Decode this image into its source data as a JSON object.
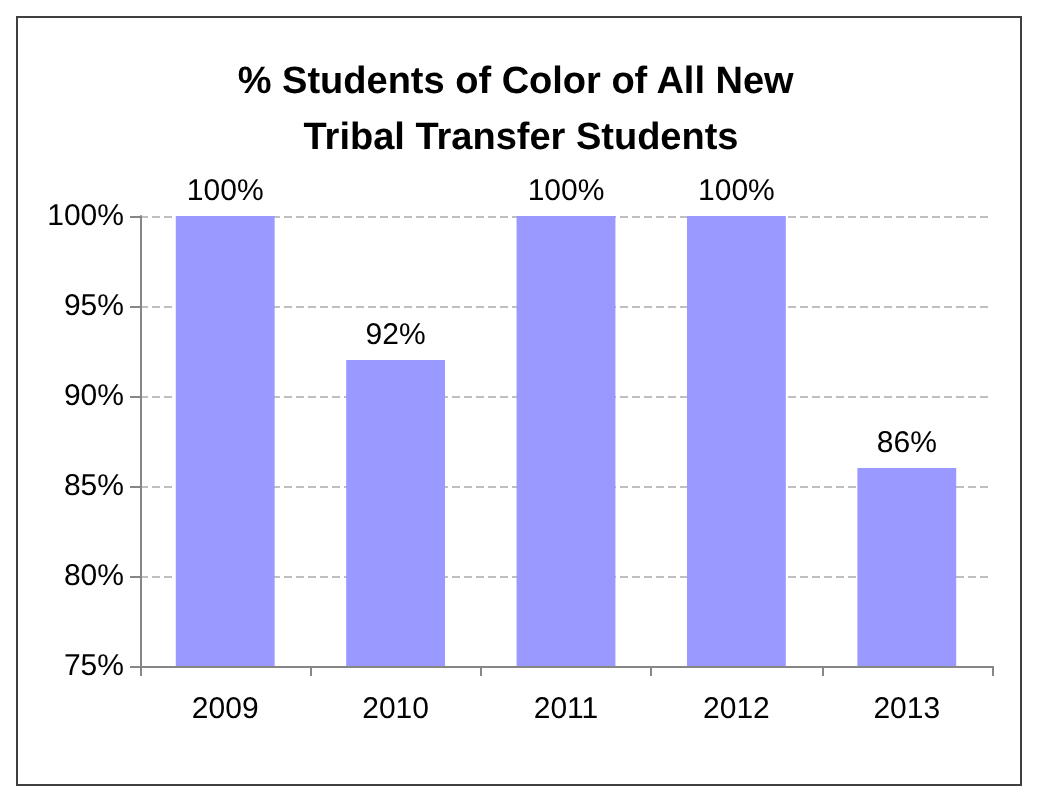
{
  "chart_data": {
    "type": "bar",
    "title": "% Students of Color of All New Tribal Transfer Students",
    "categories": [
      "2009",
      "2010",
      "2011",
      "2012",
      "2013"
    ],
    "values": [
      100,
      92,
      100,
      100,
      86
    ],
    "value_labels": [
      "100%",
      "92%",
      "100%",
      "100%",
      "86%"
    ],
    "color": "#9999ff",
    "ylim": [
      75,
      100
    ],
    "yticks": [
      {
        "value": 75,
        "label": "75%"
      },
      {
        "value": 80,
        "label": "80%"
      },
      {
        "value": 85,
        "label": "85%"
      },
      {
        "value": 90,
        "label": "90%"
      },
      {
        "value": 95,
        "label": "95%"
      },
      {
        "value": 100,
        "label": "100%"
      }
    ],
    "grid": "y"
  }
}
